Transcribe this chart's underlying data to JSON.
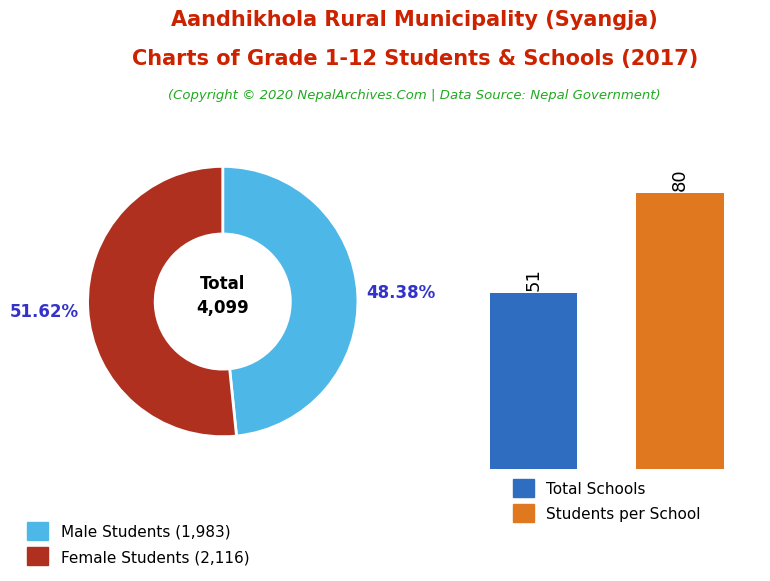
{
  "title_line1": "Aandhikhola Rural Municipality (Syangja)",
  "title_line2": "Charts of Grade 1-12 Students & Schools (2017)",
  "subtitle": "(Copyright © 2020 NepalArchives.Com | Data Source: Nepal Government)",
  "title_color": "#cc2200",
  "subtitle_color": "#22aa22",
  "donut_values": [
    1983,
    2116
  ],
  "donut_colors": [
    "#4db8e8",
    "#b03020"
  ],
  "donut_labels": [
    "48.38%",
    "51.62%"
  ],
  "donut_label_color": "#3333cc",
  "donut_center_text": "Total\n4,099",
  "legend_labels": [
    "Male Students (1,983)",
    "Female Students (2,116)"
  ],
  "bar_values": [
    51,
    80
  ],
  "bar_colors": [
    "#2e6dbf",
    "#e07820"
  ],
  "bar_legend_labels": [
    "Total Schools",
    "Students per School"
  ],
  "bar_label_color": "#000000",
  "background_color": "#ffffff"
}
